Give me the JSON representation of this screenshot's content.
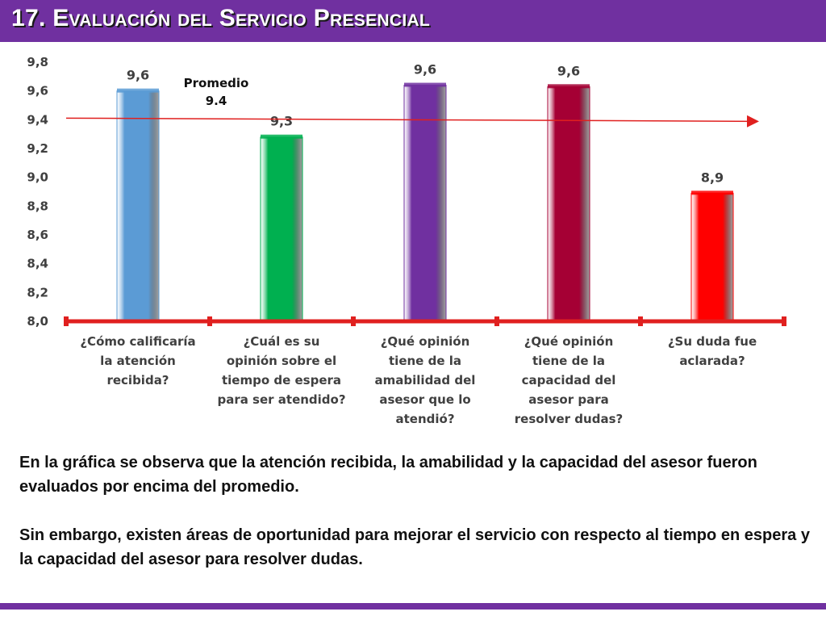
{
  "slide": {
    "title": "17. Evaluación del Servicio Presencial",
    "paragraph_1": "En la gráfica se observa que la atención recibida, la amabilidad y la capacidad del asesor fueron evaluados por encima del promedio.",
    "paragraph_2": "Sin embargo, existen áreas de oportunidad para mejorar el servicio con respecto al tiempo en espera y la capacidad del asesor para resolver dudas."
  },
  "colors": {
    "title_bar": "#7030a0",
    "axis_line": "#e0201f",
    "average_line": "#e0201f",
    "tick_label": "#404040"
  },
  "chart_data": {
    "type": "bar",
    "title": "",
    "xlabel": "",
    "ylabel": "",
    "ylim": [
      8.0,
      9.8
    ],
    "ytick_step": 0.2,
    "ytick_labels": [
      "8,0",
      "8,2",
      "8,4",
      "8,6",
      "8,8",
      "9,0",
      "9,2",
      "9,4",
      "9,6",
      "9,8"
    ],
    "grid": false,
    "categories": [
      [
        "¿Cómo calificaría",
        "la atención",
        "recibida?"
      ],
      [
        "¿Cuál es su",
        "opinión sobre el",
        "tiempo de espera",
        "para ser atendido?"
      ],
      [
        "¿Qué opinión",
        "tiene de la",
        "amabilidad del",
        "asesor que lo",
        "atendió?"
      ],
      [
        "¿Qué opinión",
        "tiene de la",
        "capacidad del",
        "asesor para",
        "resolver dudas?"
      ],
      [
        "¿Su duda fue",
        "aclarada?"
      ]
    ],
    "values": [
      9.6,
      9.28,
      9.64,
      9.63,
      8.89
    ],
    "value_labels": [
      "9,6",
      "9,3",
      "9,6",
      "9,6",
      "8,9"
    ],
    "bar_colors": [
      "#5b9bd5",
      "#00b050",
      "#7030a0",
      "#a50034",
      "#ff0000"
    ],
    "average": {
      "label_lines": [
        "Promedio",
        "9.4"
      ],
      "value": 9.4
    }
  }
}
